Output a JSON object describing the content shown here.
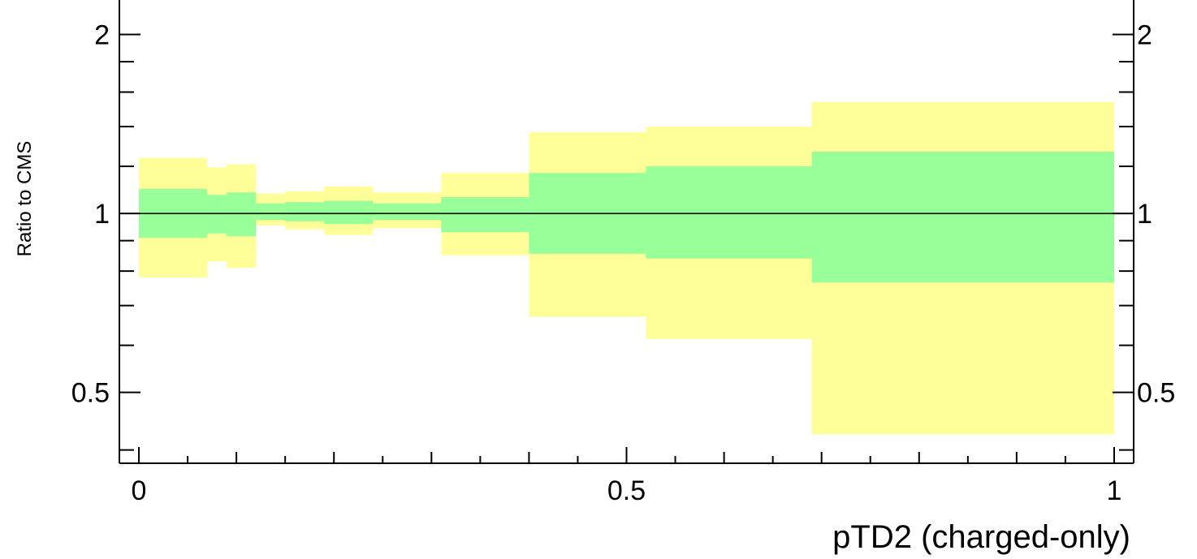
{
  "chart_data": {
    "type": "area",
    "title": "",
    "xlabel": "pTD2 (charged-only)",
    "ylabel": "Ratio to CMS",
    "xlim": [
      -0.02,
      1.02
    ],
    "ylim": [
      0.38,
      2.3
    ],
    "y_scale": "log",
    "x_ticks": [
      {
        "value": 0,
        "label": "0"
      },
      {
        "value": 0.5,
        "label": "0.5"
      },
      {
        "value": 1,
        "label": "1"
      }
    ],
    "y_ticks": [
      {
        "value": 0.5,
        "label": "0.5"
      },
      {
        "value": 1,
        "label": "1"
      },
      {
        "value": 2,
        "label": "2"
      }
    ],
    "reference_line": 1,
    "bin_edges": [
      0,
      0.07,
      0.09,
      0.12,
      0.15,
      0.19,
      0.24,
      0.31,
      0.4,
      0.52,
      0.69,
      1.0
    ],
    "series": [
      {
        "color": "#ffff99",
        "lower": [
          0.78,
          0.83,
          0.81,
          0.955,
          0.94,
          0.92,
          0.945,
          0.85,
          0.67,
          0.615,
          0.425
        ],
        "upper": [
          1.24,
          1.195,
          1.21,
          1.08,
          1.09,
          1.11,
          1.085,
          1.17,
          1.37,
          1.4,
          1.54
        ]
      },
      {
        "color": "#99ff99",
        "lower": [
          0.91,
          0.925,
          0.915,
          0.975,
          0.97,
          0.96,
          0.975,
          0.93,
          0.855,
          0.84,
          0.765
        ],
        "upper": [
          1.1,
          1.075,
          1.085,
          1.04,
          1.045,
          1.05,
          1.04,
          1.065,
          1.17,
          1.2,
          1.27
        ]
      }
    ]
  }
}
